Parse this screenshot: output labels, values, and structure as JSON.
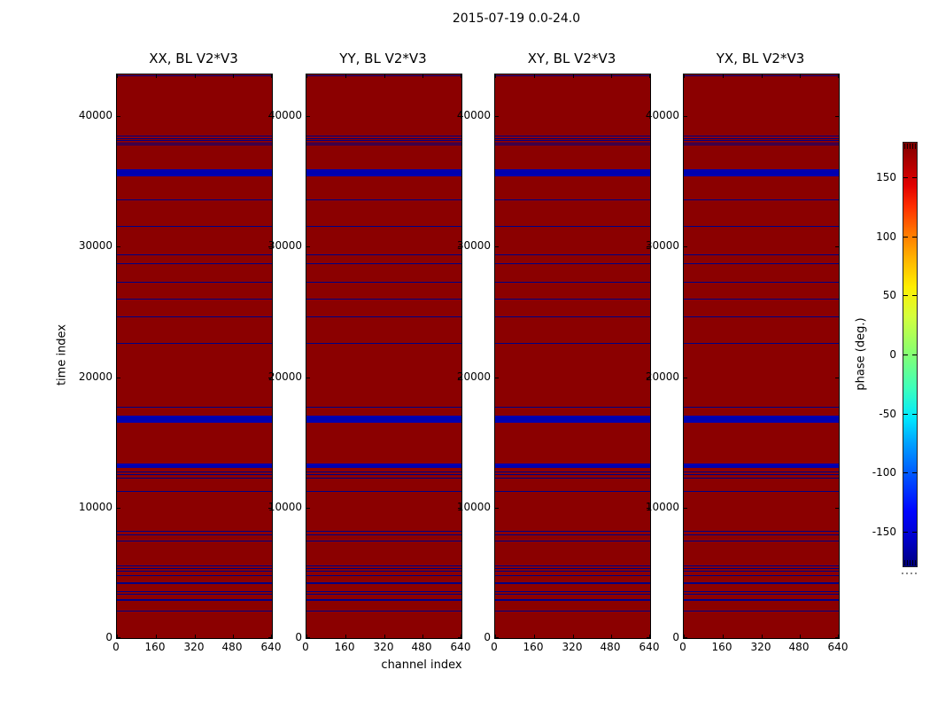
{
  "figure": {
    "suptitle": "2015-07-19 0.0-24.0"
  },
  "chart_data": {
    "type": "heatmap",
    "suptitle": "2015-07-19 0.0-24.0",
    "panel_titles": [
      "XX, BL V2*V3",
      "YY, BL V2*V3",
      "XY, BL V2*V3",
      "YX, BL V2*V3"
    ],
    "xlabel": "channel index",
    "ylabel": "time index",
    "xlim": [
      0,
      640
    ],
    "ylim": [
      0,
      43200
    ],
    "x_ticks": [
      0,
      160,
      320,
      480,
      640
    ],
    "y_ticks": [
      0,
      10000,
      20000,
      30000,
      40000
    ],
    "grid": false,
    "legend": false,
    "colors": {
      "field_phase_high": "#8b0000",
      "stripe_thin": "#000084",
      "stripe_thick": "#0000b0",
      "axis": "#000000",
      "background": "#ffffff"
    },
    "colorbar": {
      "label": "phase (deg.)",
      "ticks": [
        150,
        100,
        50,
        0,
        -50,
        -100,
        -150
      ],
      "vmin": -180,
      "vmax": 180,
      "colormap": "jet",
      "orientation": "vertical"
    },
    "stripes_note": "blue rows (phase near -180 deg) on dark-red (+180 deg) field; identical in all four panels; format [time_index_center, thickness_in_time_units]",
    "stripes": [
      [
        43100,
        70
      ],
      [
        38450,
        70
      ],
      [
        38280,
        70
      ],
      [
        38110,
        70
      ],
      [
        37940,
        70
      ],
      [
        37770,
        70
      ],
      [
        35670,
        510
      ],
      [
        33600,
        70
      ],
      [
        31550,
        70
      ],
      [
        29350,
        70
      ],
      [
        28680,
        70
      ],
      [
        27280,
        70
      ],
      [
        25960,
        70
      ],
      [
        24610,
        70
      ],
      [
        22570,
        70
      ],
      [
        17700,
        70
      ],
      [
        16760,
        530
      ],
      [
        13230,
        340
      ],
      [
        12720,
        70
      ],
      [
        12500,
        70
      ],
      [
        12270,
        70
      ],
      [
        11210,
        70
      ],
      [
        8200,
        70
      ],
      [
        7900,
        70
      ],
      [
        7450,
        70
      ],
      [
        5550,
        70
      ],
      [
        5300,
        70
      ],
      [
        5100,
        70
      ],
      [
        4800,
        70
      ],
      [
        4200,
        140
      ],
      [
        3600,
        70
      ],
      [
        3330,
        70
      ],
      [
        2890,
        140
      ],
      [
        2090,
        70
      ]
    ]
  }
}
